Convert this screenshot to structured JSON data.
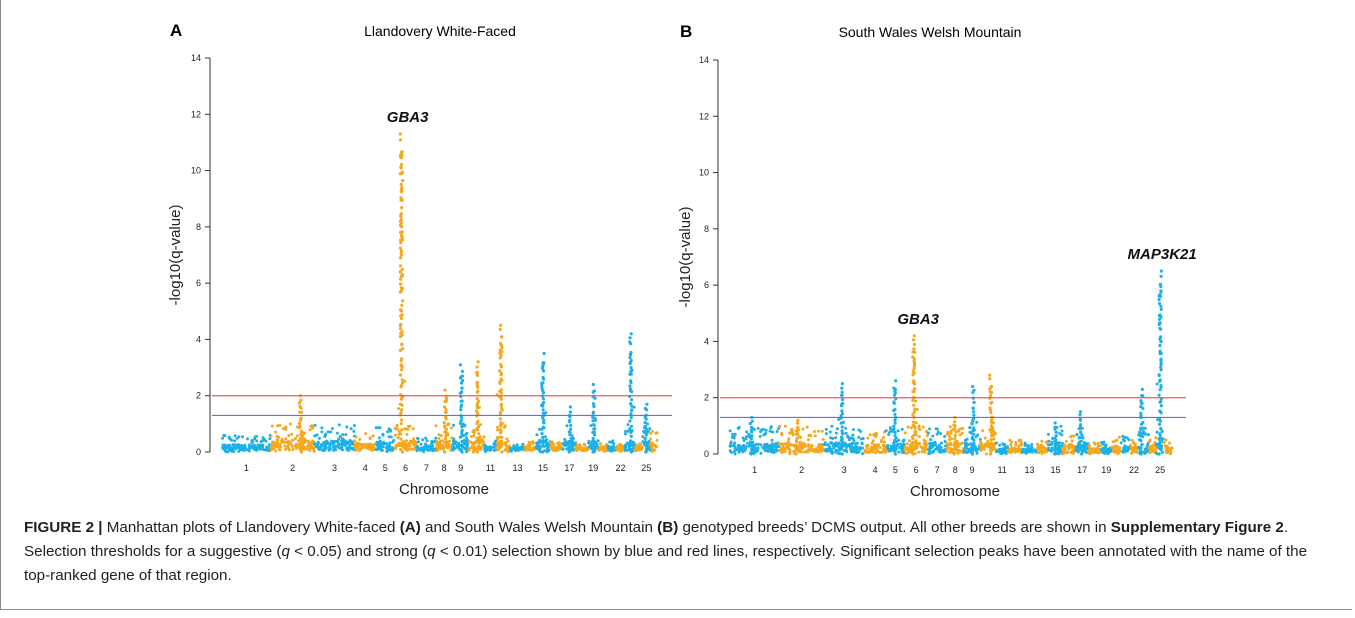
{
  "chart_data": [
    {
      "type": "scatter",
      "panel_label": "A",
      "title": "Llandovery White-Faced",
      "xlabel": "Chromosome",
      "ylabel": "-log10(q-value)",
      "ylim": [
        0,
        14
      ],
      "yticks": [
        "0",
        "2",
        "4",
        "6",
        "8",
        "10",
        "12",
        "14"
      ],
      "xticks": [
        "1",
        "2",
        "3",
        "4",
        "5",
        "6",
        "7",
        "8",
        "9",
        "11",
        "13",
        "15",
        "17",
        "19",
        "22",
        "25"
      ],
      "colors": {
        "odd_chromosomes": "#1bb1e7",
        "even_chromosomes": "#f6a81c",
        "suggestive_line": "#6b6bf0",
        "strong_line": "#ef5a5a"
      },
      "thresholds": [
        {
          "label": "suggestive (q < 0.05)",
          "y": 1.3
        },
        {
          "label": "strong (q < 0.01)",
          "y": 2.0
        }
      ],
      "chromosome_peaks": [
        {
          "chromosome": 1,
          "max_y": 0.6
        },
        {
          "chromosome": 2,
          "max_y": 2.0
        },
        {
          "chromosome": 3,
          "max_y": 1.0
        },
        {
          "chromosome": 4,
          "max_y": 0.7
        },
        {
          "chromosome": 5,
          "max_y": 0.9
        },
        {
          "chromosome": 6,
          "max_y": 11.3
        },
        {
          "chromosome": 7,
          "max_y": 0.5
        },
        {
          "chromosome": 8,
          "max_y": 2.2
        },
        {
          "chromosome": 9,
          "max_y": 3.1
        },
        {
          "chromosome": 10,
          "max_y": 3.2
        },
        {
          "chromosome": 11,
          "max_y": 0.4
        },
        {
          "chromosome": 12,
          "max_y": 4.5
        },
        {
          "chromosome": 13,
          "max_y": 0.3
        },
        {
          "chromosome": 14,
          "max_y": 0.4
        },
        {
          "chromosome": 15,
          "max_y": 3.5
        },
        {
          "chromosome": 16,
          "max_y": 0.4
        },
        {
          "chromosome": 17,
          "max_y": 1.6
        },
        {
          "chromosome": 18,
          "max_y": 0.3
        },
        {
          "chromosome": 19,
          "max_y": 2.4
        },
        {
          "chromosome": 20,
          "max_y": 0.3
        },
        {
          "chromosome": 21,
          "max_y": 0.4
        },
        {
          "chromosome": 22,
          "max_y": 0.3
        },
        {
          "chromosome": 23,
          "max_y": 4.2
        },
        {
          "chromosome": 24,
          "max_y": 0.3
        },
        {
          "chromosome": 25,
          "max_y": 1.7
        },
        {
          "chromosome": 26,
          "max_y": 0.8
        }
      ],
      "annotations": [
        {
          "text": "GBA3",
          "chromosome": 6,
          "y": 11.3
        }
      ]
    },
    {
      "type": "scatter",
      "panel_label": "B",
      "title": "South Wales Welsh Mountain",
      "xlabel": "Chromosome",
      "ylabel": "-log10(q-value)",
      "ylim": [
        0,
        14
      ],
      "yticks": [
        "0",
        "2",
        "4",
        "6",
        "8",
        "10",
        "12",
        "14"
      ],
      "xticks": [
        "1",
        "2",
        "3",
        "4",
        "5",
        "6",
        "7",
        "8",
        "9",
        "11",
        "13",
        "15",
        "17",
        "19",
        "22",
        "25"
      ],
      "colors": {
        "odd_chromosomes": "#1bb1e7",
        "even_chromosomes": "#f6a81c",
        "suggestive_line": "#6b6bf0",
        "strong_line": "#ef5a5a"
      },
      "thresholds": [
        {
          "label": "suggestive (q < 0.05)",
          "y": 1.3
        },
        {
          "label": "strong (q < 0.01)",
          "y": 2.0
        }
      ],
      "chromosome_peaks": [
        {
          "chromosome": 1,
          "max_y": 1.3
        },
        {
          "chromosome": 2,
          "max_y": 1.2
        },
        {
          "chromosome": 3,
          "max_y": 2.5
        },
        {
          "chromosome": 4,
          "max_y": 0.8
        },
        {
          "chromosome": 5,
          "max_y": 2.6
        },
        {
          "chromosome": 6,
          "max_y": 4.2
        },
        {
          "chromosome": 7,
          "max_y": 1.0
        },
        {
          "chromosome": 8,
          "max_y": 1.3
        },
        {
          "chromosome": 9,
          "max_y": 2.4
        },
        {
          "chromosome": 10,
          "max_y": 2.8
        },
        {
          "chromosome": 11,
          "max_y": 0.4
        },
        {
          "chromosome": 12,
          "max_y": 0.5
        },
        {
          "chromosome": 13,
          "max_y": 0.4
        },
        {
          "chromosome": 14,
          "max_y": 0.6
        },
        {
          "chromosome": 15,
          "max_y": 1.1
        },
        {
          "chromosome": 16,
          "max_y": 0.7
        },
        {
          "chromosome": 17,
          "max_y": 1.5
        },
        {
          "chromosome": 18,
          "max_y": 0.4
        },
        {
          "chromosome": 19,
          "max_y": 0.5
        },
        {
          "chromosome": 20,
          "max_y": 0.6
        },
        {
          "chromosome": 21,
          "max_y": 0.7
        },
        {
          "chromosome": 22,
          "max_y": 0.6
        },
        {
          "chromosome": 23,
          "max_y": 2.3
        },
        {
          "chromosome": 24,
          "max_y": 0.8
        },
        {
          "chromosome": 25,
          "max_y": 6.5
        },
        {
          "chromosome": 26,
          "max_y": 0.5
        }
      ],
      "annotations": [
        {
          "text": "GBA3",
          "chromosome": 6,
          "y": 4.2
        },
        {
          "text": "MAP3K21",
          "chromosome": 25,
          "y": 6.5
        }
      ]
    }
  ],
  "caption": {
    "figure_label": "FIGURE 2 |",
    "text_1": " Manhattan plots of Llandovery White-faced ",
    "bold_a": "(A)",
    "text_2": " and South Wales Welsh Mountain ",
    "bold_b": "(B)",
    "text_3": " genotyped breeds’ DCMS output. All other breeds are shown in ",
    "supp_ref": "Supplementary Figure 2",
    "text_4": ". Selection thresholds for a suggestive (",
    "q_var_1": "q",
    "text_5": " < 0.05) and strong (",
    "q_var_2": "q",
    "text_6": " < 0.01) selection shown by blue and red lines, respectively. Significant selection peaks have been annotated with the name of the top-ranked gene of that region."
  }
}
